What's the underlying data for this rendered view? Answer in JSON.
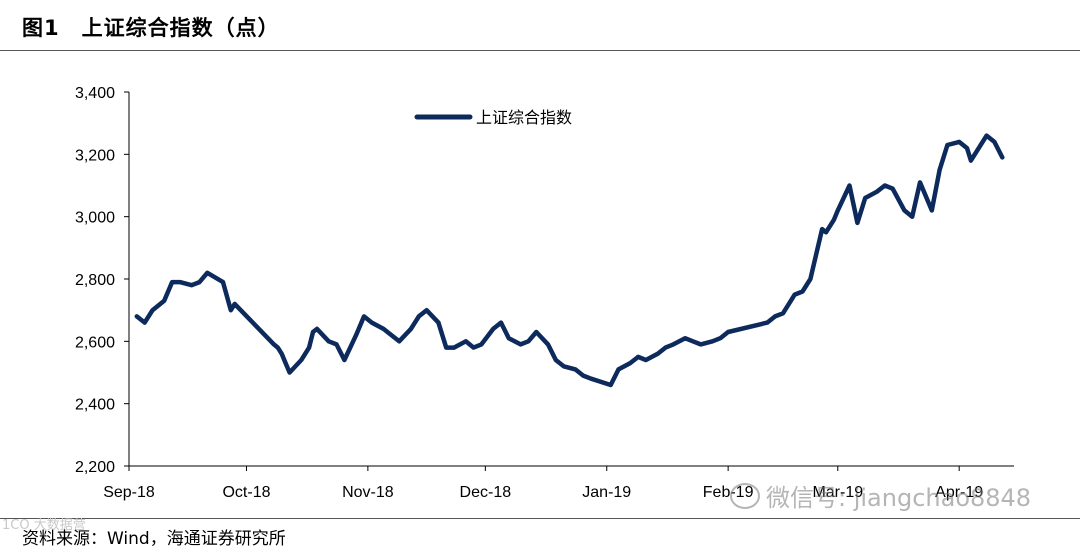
{
  "figure": {
    "number": "图1",
    "title": "上证综合指数（点）"
  },
  "source": "资料来源：Wind，海通证券研究所",
  "watermark_left": "1CO 大数据营",
  "watermark_right": "微信号: jiangchao8848",
  "colors": {
    "series": "#0d2a5c",
    "axis": "#000000"
  },
  "chart_data": {
    "type": "line",
    "title": "",
    "xlabel": "",
    "ylabel": "",
    "ylim": [
      2200,
      3400
    ],
    "yticks": [
      "2,200",
      "2,400",
      "2,600",
      "2,800",
      "3,000",
      "3,200",
      "3,400"
    ],
    "ytick_values": [
      2200,
      2400,
      2600,
      2800,
      3000,
      3200,
      3400
    ],
    "xlim": [
      "2018-09-01",
      "2019-04-15"
    ],
    "xticks": [
      "Sep-18",
      "Oct-18",
      "Nov-18",
      "Dec-18",
      "Jan-19",
      "Feb-19",
      "Mar-19",
      "Apr-19"
    ],
    "xtick_dates": [
      "2018-09-01",
      "2018-10-01",
      "2018-11-01",
      "2018-12-01",
      "2019-01-01",
      "2019-02-01",
      "2019-03-01",
      "2019-04-01"
    ],
    "legend": {
      "position": "top-left",
      "entries": [
        "上证综合指数"
      ]
    },
    "grid": false,
    "series": [
      {
        "name": "上证综合指数",
        "x": [
          "2018-09-03",
          "2018-09-05",
          "2018-09-07",
          "2018-09-10",
          "2018-09-12",
          "2018-09-14",
          "2018-09-17",
          "2018-09-19",
          "2018-09-21",
          "2018-09-25",
          "2018-09-27",
          "2018-09-28",
          "2018-10-08",
          "2018-10-09",
          "2018-10-10",
          "2018-10-11",
          "2018-10-12",
          "2018-10-15",
          "2018-10-16",
          "2018-10-17",
          "2018-10-18",
          "2018-10-19",
          "2018-10-22",
          "2018-10-24",
          "2018-10-26",
          "2018-10-29",
          "2018-10-31",
          "2018-11-02",
          "2018-11-05",
          "2018-11-07",
          "2018-11-09",
          "2018-11-12",
          "2018-11-14",
          "2018-11-16",
          "2018-11-19",
          "2018-11-21",
          "2018-11-23",
          "2018-11-26",
          "2018-11-28",
          "2018-11-30",
          "2018-12-03",
          "2018-12-05",
          "2018-12-07",
          "2018-12-10",
          "2018-12-12",
          "2018-12-14",
          "2018-12-17",
          "2018-12-19",
          "2018-12-21",
          "2018-12-24",
          "2018-12-26",
          "2018-12-28",
          "2019-01-02",
          "2019-01-04",
          "2019-01-07",
          "2019-01-09",
          "2019-01-11",
          "2019-01-14",
          "2019-01-16",
          "2019-01-18",
          "2019-01-21",
          "2019-01-23",
          "2019-01-25",
          "2019-01-28",
          "2019-01-30",
          "2019-02-01",
          "2019-02-11",
          "2019-02-13",
          "2019-02-15",
          "2019-02-18",
          "2019-02-20",
          "2019-02-22",
          "2019-02-25",
          "2019-02-26",
          "2019-02-28",
          "2019-03-01",
          "2019-03-04",
          "2019-03-06",
          "2019-03-07",
          "2019-03-08",
          "2019-03-11",
          "2019-03-13",
          "2019-03-15",
          "2019-03-18",
          "2019-03-20",
          "2019-03-22",
          "2019-03-25",
          "2019-03-27",
          "2019-03-29",
          "2019-04-01",
          "2019-04-03",
          "2019-04-04",
          "2019-04-08",
          "2019-04-10",
          "2019-04-12"
        ],
        "values": [
          2680,
          2660,
          2700,
          2730,
          2790,
          2790,
          2780,
          2790,
          2820,
          2790,
          2700,
          2720,
          2590,
          2580,
          2560,
          2530,
          2500,
          2540,
          2560,
          2580,
          2630,
          2640,
          2600,
          2590,
          2540,
          2620,
          2680,
          2660,
          2640,
          2620,
          2600,
          2640,
          2680,
          2700,
          2660,
          2580,
          2580,
          2600,
          2580,
          2590,
          2640,
          2660,
          2610,
          2590,
          2600,
          2630,
          2590,
          2540,
          2520,
          2510,
          2490,
          2480,
          2460,
          2510,
          2530,
          2550,
          2540,
          2560,
          2580,
          2590,
          2610,
          2600,
          2590,
          2600,
          2610,
          2630,
          2660,
          2680,
          2690,
          2750,
          2760,
          2800,
          2960,
          2950,
          2990,
          3020,
          3100,
          2980,
          3020,
          3060,
          3080,
          3100,
          3090,
          3020,
          3000,
          3110,
          3020,
          3150,
          3230,
          3240,
          3220,
          3180,
          3260,
          3240,
          3190
        ]
      }
    ]
  }
}
